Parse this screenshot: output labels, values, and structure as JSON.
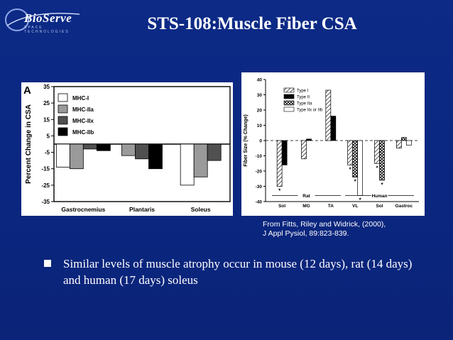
{
  "logo": {
    "text": "BioServe",
    "subtext": "SPACE TECHNOLOGIES"
  },
  "title": "STS-108:Muscle Fiber CSA",
  "citation": [
    "From Fitts, Riley and Widrick, (2000),",
    "J Appl Pysiol, 89:823-839."
  ],
  "bullet": "Similar levels of muscle atrophy occur in mouse (12 days), rat (14 days) and human (17 days)  soleus",
  "colors": {
    "background": "#0c2a86",
    "text": "#ffffff"
  },
  "chart_data": [
    {
      "type": "bar",
      "panel_label": "A",
      "ylabel": "Percent Change in CSA",
      "ylim": [
        -35,
        35
      ],
      "yticks": [
        35,
        25,
        15,
        5,
        -5,
        -15,
        -25,
        -35
      ],
      "categories": [
        "Gastrocnemius",
        "Plantaris",
        "Soleus"
      ],
      "legend_position": "top-left",
      "series": [
        {
          "name": "MHC-I",
          "color": "#ffffff",
          "values": [
            -14,
            null,
            -25
          ]
        },
        {
          "name": "MHC-IIa",
          "color": "#9a9a9a",
          "values": [
            -15,
            -7,
            -20
          ]
        },
        {
          "name": "MHC-IIx",
          "color": "#505050",
          "values": [
            -3,
            -9,
            -10
          ]
        },
        {
          "name": "MHC-IIb",
          "color": "#000000",
          "values": [
            -4,
            -15,
            null
          ]
        }
      ]
    },
    {
      "type": "bar",
      "ylabel": "Fiber Size (% Change)",
      "ylim": [
        -40,
        40
      ],
      "yticks": [
        40,
        30,
        20,
        10,
        0,
        -10,
        -20,
        -30,
        -40
      ],
      "categories": [
        "Sol",
        "MG",
        "TA",
        "VL",
        "Sol",
        "Gastroc"
      ],
      "groups": [
        {
          "label": "Rat",
          "categories": [
            "Sol",
            "MG",
            "TA"
          ]
        },
        {
          "label": "Human",
          "categories": [
            "VL",
            "Sol",
            "Gastroc"
          ]
        }
      ],
      "legend_position": "top-left",
      "series": [
        {
          "name": "Type I",
          "pattern": "diagonal",
          "values": [
            -30,
            -12,
            33,
            -16,
            -15,
            -5
          ]
        },
        {
          "name": "Type II",
          "pattern": "solid-black",
          "values": [
            -16,
            1,
            16,
            null,
            null,
            null
          ]
        },
        {
          "name": "Type IIa",
          "pattern": "crosshatch",
          "values": [
            null,
            null,
            null,
            -24,
            -26,
            2
          ]
        },
        {
          "name": "Type IIx or IIb",
          "pattern": "white",
          "values": [
            null,
            null,
            null,
            -36,
            null,
            -3
          ]
        }
      ],
      "significance": [
        {
          "category_index": 0,
          "series": "Type I",
          "mark": "*"
        },
        {
          "category_index": 3,
          "series": "Type I",
          "mark": "*"
        },
        {
          "category_index": 3,
          "series": "Type IIa",
          "mark": "*"
        },
        {
          "category_index": 3,
          "series": "Type IIx or IIb",
          "mark": "*"
        },
        {
          "category_index": 4,
          "series": "Type I",
          "mark": "*"
        },
        {
          "category_index": 4,
          "series": "Type IIa",
          "mark": "*"
        }
      ]
    }
  ]
}
